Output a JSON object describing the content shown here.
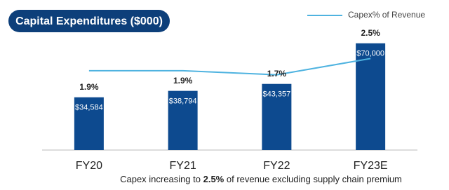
{
  "chart_data": {
    "type": "bar",
    "title": "Capital Expenditures ($000)",
    "categories": [
      "FY20",
      "FY21",
      "FY22",
      "FY23E"
    ],
    "values": [
      34584,
      38794,
      43357,
      70000
    ],
    "value_labels": [
      "$34,584",
      "$38,794",
      "$43,357",
      "$70,000"
    ],
    "color": "#0d4a8f",
    "ylim": [
      0,
      80000
    ],
    "series": [
      {
        "name": "Capex% of Revenue",
        "type": "line",
        "axis": "y2",
        "color": "#4fb3e0",
        "values": [
          1.9,
          1.9,
          1.7,
          2.5
        ],
        "value_labels": [
          "1.9%",
          "1.9%",
          "1.7%",
          "2.5%"
        ]
      }
    ],
    "y2lim": [
      -2,
      4
    ],
    "legend": "top-right",
    "footnote": [
      "Capex increasing to ",
      "2.5%",
      " of revenue excluding supply chain premium"
    ],
    "footnote_bold": [
      false,
      true,
      false
    ]
  }
}
